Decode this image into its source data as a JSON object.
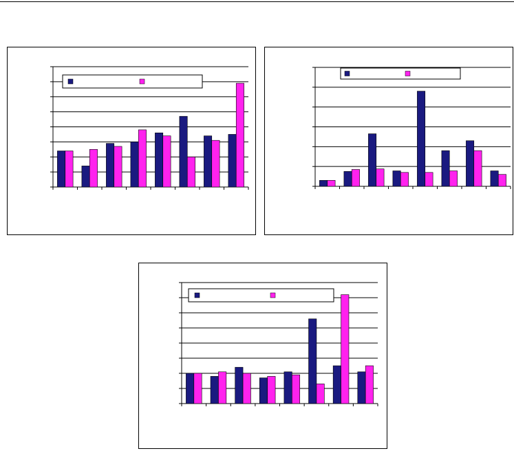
{
  "colors": {
    "series1": "#1a1a80",
    "series2": "#ff22ee",
    "grid": "#000000",
    "frame": "#000000"
  },
  "chart_data": [
    {
      "type": "bar",
      "title": "",
      "xlabel": "",
      "ylabel": "",
      "ylim": [
        0,
        8
      ],
      "grid": true,
      "legend_position": "top",
      "categories": [
        "",
        "",
        "",
        "",
        "",
        "",
        "",
        ""
      ],
      "series": [
        {
          "values": [
            2.4,
            1.4,
            2.9,
            3.0,
            3.6,
            4.7,
            3.4,
            3.5
          ]
        },
        {
          "values": [
            2.4,
            2.5,
            2.7,
            3.8,
            3.4,
            2.0,
            3.1,
            6.9
          ]
        }
      ]
    },
    {
      "type": "bar",
      "title": "",
      "xlabel": "",
      "ylabel": "",
      "ylim": [
        0,
        6
      ],
      "grid": true,
      "legend_position": "top",
      "categories": [
        "",
        "",
        "",
        "",
        "",
        "",
        "",
        ""
      ],
      "series": [
        {
          "values": [
            0.3,
            0.75,
            2.65,
            0.78,
            4.8,
            1.8,
            2.3,
            0.78
          ]
        },
        {
          "values": [
            0.3,
            0.85,
            0.88,
            0.7,
            0.7,
            0.78,
            1.8,
            0.6
          ]
        }
      ]
    },
    {
      "type": "bar",
      "title": "",
      "xlabel": "",
      "ylabel": "",
      "ylim": [
        0,
        8
      ],
      "grid": true,
      "legend_position": "top",
      "categories": [
        "",
        "",
        "",
        "",
        "",
        "",
        "",
        ""
      ],
      "series": [
        {
          "values": [
            2.0,
            1.8,
            2.4,
            1.7,
            2.1,
            5.6,
            2.5,
            2.1
          ]
        },
        {
          "values": [
            2.0,
            2.1,
            2.0,
            1.8,
            1.9,
            1.3,
            7.2,
            2.5
          ]
        }
      ]
    }
  ]
}
